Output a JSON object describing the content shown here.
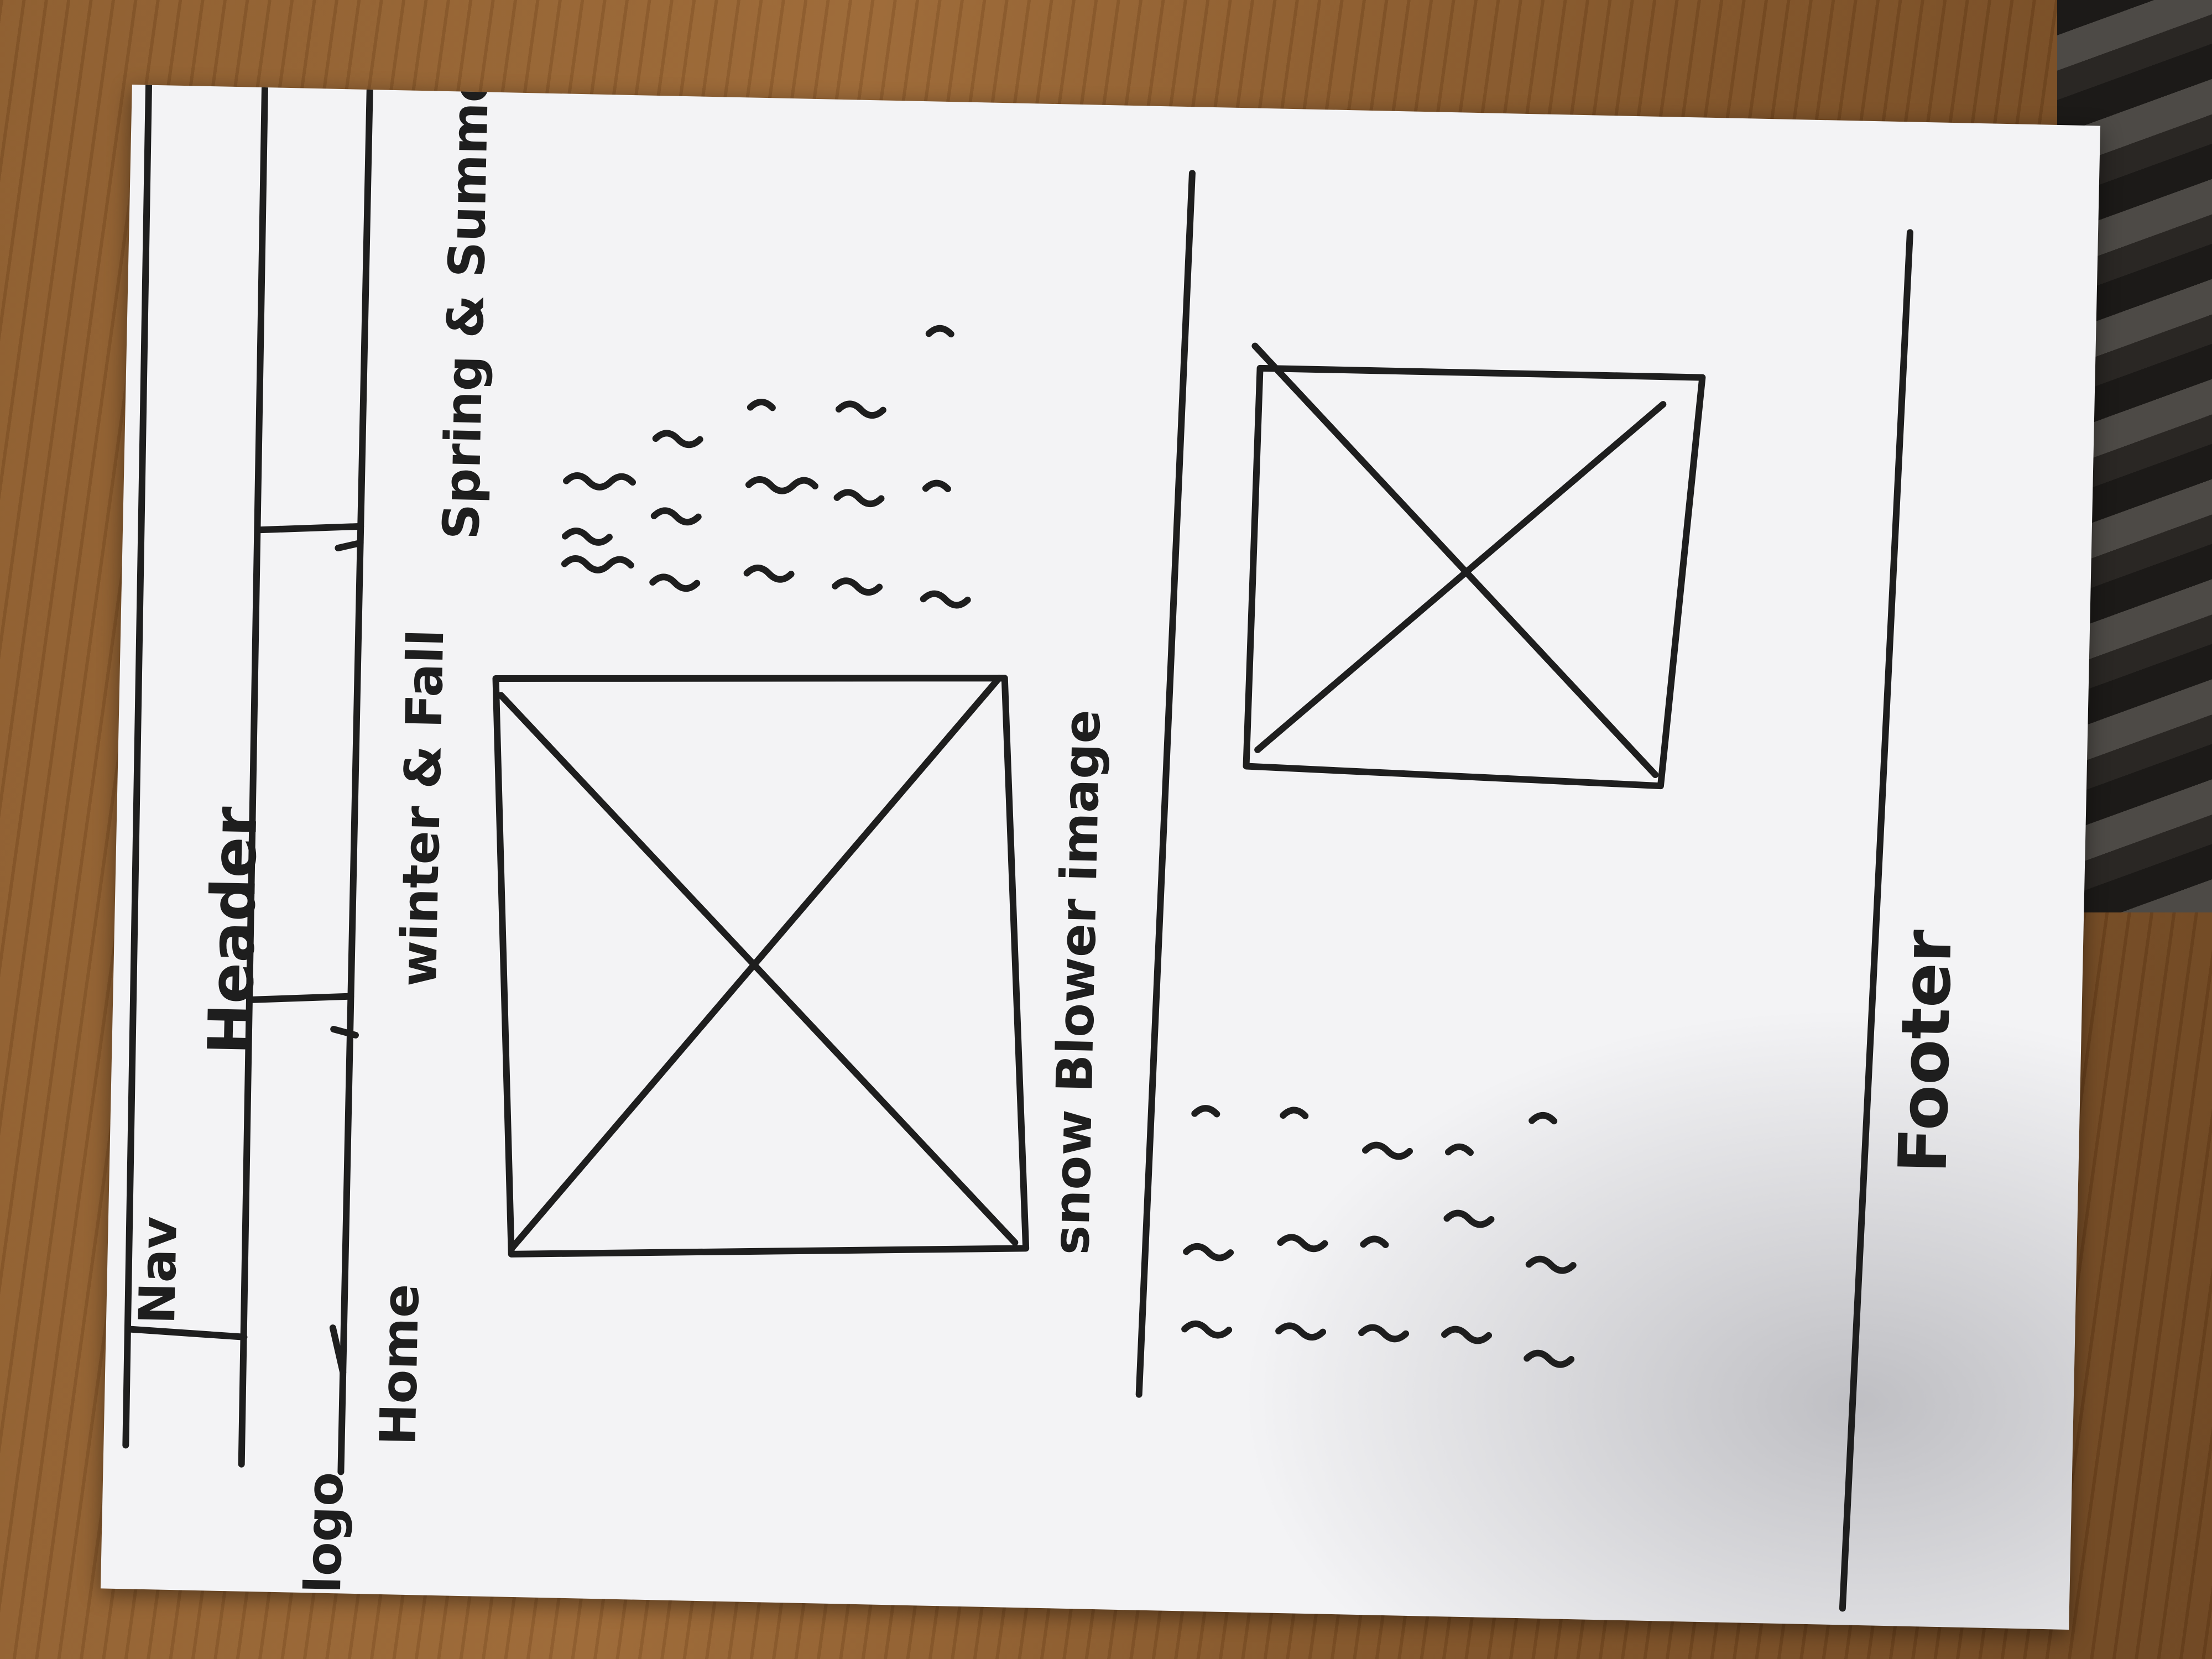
{
  "sketch": {
    "header_label": "Header",
    "nav_label": "Nav",
    "logo_label": "logo",
    "nav_items": [
      {
        "label": "Home"
      },
      {
        "label": "winter & Fall"
      },
      {
        "label": "Spring & Summer"
      }
    ],
    "hero_image_caption": "snow Blower image",
    "footer_label": "Footer"
  }
}
